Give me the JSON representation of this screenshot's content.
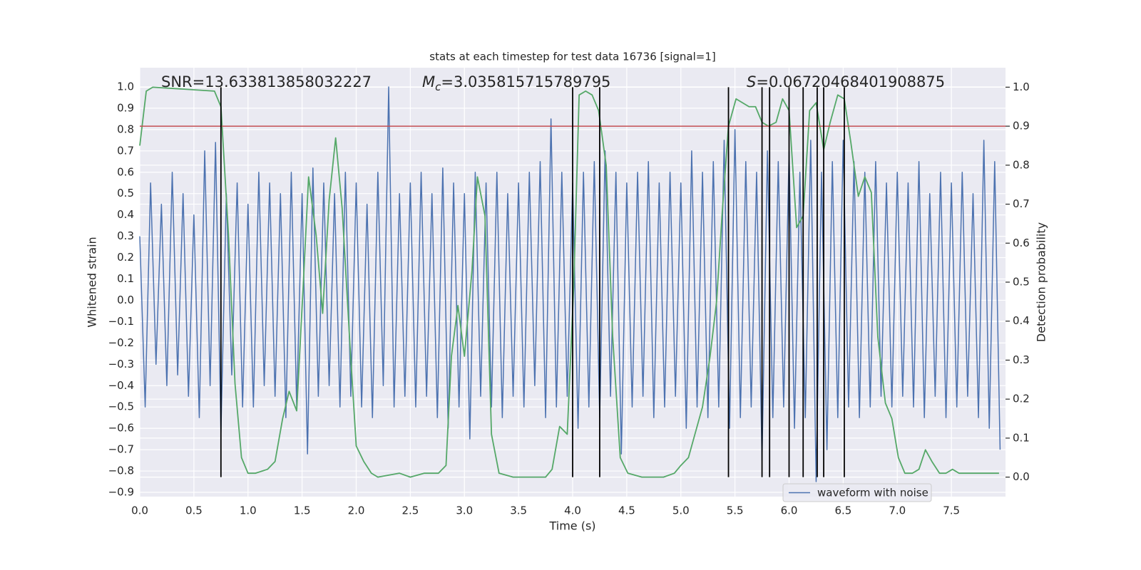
{
  "chart_data": {
    "type": "line",
    "title": "stats at each timestep for test data 16736 [signal=1]",
    "xlabel": "Time (s)",
    "ylabel": "Whitened strain",
    "y2label": "Detection probability",
    "annotations": [
      {
        "text": "SNR=13.633813858032227"
      },
      {
        "italic": "M",
        "sub": "c",
        "text": "=3.035815715789795"
      },
      {
        "italic": "S",
        "text": "=0.06720468401908875"
      }
    ],
    "xlim": [
      0,
      8
    ],
    "ylim": [
      -0.92,
      1.09
    ],
    "y2lim": [
      -0.05,
      1.05
    ],
    "xticks": [
      {
        "value": 0,
        "label": "0.0"
      },
      0.5,
      {
        "value": 1,
        "label": "1.0"
      },
      1.5,
      {
        "value": 2,
        "label": "2.0"
      },
      2.5,
      {
        "value": 3,
        "label": "3.0"
      },
      3.5,
      {
        "value": 4,
        "label": "4.0"
      },
      4.5,
      {
        "value": 5,
        "label": "5.0"
      },
      5.5,
      {
        "value": 6,
        "label": "6.0"
      },
      6.5,
      {
        "value": 7,
        "label": "7.0"
      },
      7.5
    ],
    "yticks": [
      {
        "value": -0.9,
        "label": "−0.9"
      },
      {
        "value": -0.8,
        "label": "−0.8"
      },
      {
        "value": -0.7,
        "label": "−0.7"
      },
      {
        "value": -0.6,
        "label": "−0.6"
      },
      {
        "value": -0.5,
        "label": "−0.5"
      },
      {
        "value": -0.4,
        "label": "−0.4"
      },
      {
        "value": -0.3,
        "label": "−0.3"
      },
      {
        "value": -0.2,
        "label": "−0.2"
      },
      {
        "value": -0.1,
        "label": "−0.1"
      },
      {
        "value": 0,
        "label": "0.0"
      },
      0.1,
      0.2,
      0.3,
      0.4,
      0.5,
      0.6,
      0.7,
      0.8,
      0.9,
      {
        "value": 1,
        "label": "1.0"
      }
    ],
    "y2ticks": [
      {
        "value": 0,
        "label": "0.0"
      },
      0.1,
      0.2,
      0.3,
      0.4,
      0.5,
      0.6,
      0.7,
      0.8,
      0.9,
      {
        "value": 1,
        "label": "1.0"
      }
    ],
    "grid": true,
    "legend": "lower right",
    "series": [
      {
        "name": "waveform with noise",
        "color": "#4c72b0",
        "x": [
          0,
          0.05,
          0.1,
          0.15,
          0.2,
          0.25,
          0.3,
          0.35,
          0.4,
          0.45,
          0.5,
          0.55,
          0.6,
          0.65,
          0.7,
          0.75,
          0.8,
          0.85,
          0.9,
          0.95,
          1,
          1.05,
          1.1,
          1.15,
          1.2,
          1.25,
          1.3,
          1.35,
          1.4,
          1.45,
          1.5,
          1.55,
          1.6,
          1.65,
          1.7,
          1.75,
          1.8,
          1.85,
          1.9,
          1.95,
          2,
          2.05,
          2.1,
          2.15,
          2.2,
          2.25,
          2.3,
          2.35,
          2.4,
          2.45,
          2.5,
          2.55,
          2.6,
          2.65,
          2.7,
          2.75,
          2.8,
          2.85,
          2.9,
          2.95,
          3,
          3.05,
          3.1,
          3.15,
          3.2,
          3.25,
          3.3,
          3.35,
          3.4,
          3.45,
          3.5,
          3.55,
          3.6,
          3.65,
          3.7,
          3.75,
          3.8,
          3.85,
          3.9,
          3.95,
          4,
          4.05,
          4.1,
          4.15,
          4.2,
          4.25,
          4.3,
          4.35,
          4.4,
          4.45,
          4.5,
          4.55,
          4.6,
          4.65,
          4.7,
          4.75,
          4.8,
          4.85,
          4.9,
          4.95,
          5,
          5.05,
          5.1,
          5.15,
          5.2,
          5.25,
          5.3,
          5.35,
          5.4,
          5.45,
          5.5,
          5.55,
          5.6,
          5.65,
          5.7,
          5.75,
          5.8,
          5.85,
          5.9,
          5.95,
          6,
          6.05,
          6.1,
          6.15,
          6.2,
          6.25,
          6.3,
          6.35,
          6.4,
          6.45,
          6.5,
          6.55,
          6.6,
          6.65,
          6.7,
          6.75,
          6.8,
          6.85,
          6.9,
          6.95,
          7,
          7.05,
          7.1,
          7.15,
          7.2,
          7.25,
          7.3,
          7.35,
          7.4,
          7.45,
          7.5,
          7.55,
          7.6,
          7.65,
          7.7,
          7.75,
          7.8,
          7.85,
          7.9,
          7.95
        ],
        "values": [
          0.3,
          -0.5,
          0.55,
          -0.3,
          0.45,
          -0.4,
          0.6,
          -0.35,
          0.5,
          -0.45,
          0.4,
          -0.55,
          0.7,
          -0.4,
          0.74,
          -0.62,
          0.5,
          -0.35,
          0.55,
          -0.5,
          0.45,
          -0.5,
          0.6,
          -0.4,
          0.55,
          -0.45,
          0.5,
          -0.55,
          0.6,
          -0.5,
          0.5,
          -0.72,
          0.62,
          -0.45,
          0.55,
          -0.4,
          0.5,
          -0.5,
          0.6,
          -0.45,
          0.55,
          -0.5,
          0.45,
          -0.55,
          0.6,
          -0.4,
          1.0,
          -0.5,
          0.5,
          -0.45,
          0.55,
          -0.5,
          0.6,
          -0.45,
          0.5,
          -0.55,
          0.62,
          -0.6,
          0.55,
          -0.5,
          0.5,
          -0.65,
          0.6,
          -0.45,
          0.55,
          -0.5,
          0.6,
          -0.55,
          0.5,
          -0.45,
          0.55,
          -0.5,
          0.6,
          -0.4,
          0.65,
          -0.55,
          0.85,
          -0.5,
          0.6,
          -0.45,
          0.55,
          -0.6,
          0.6,
          -0.5,
          0.65,
          -0.55,
          0.7,
          -0.45,
          0.6,
          -0.72,
          0.55,
          -0.5,
          0.6,
          -0.45,
          0.65,
          -0.55,
          0.55,
          -0.5,
          0.6,
          -0.45,
          0.55,
          -0.6,
          0.7,
          -0.5,
          0.6,
          -0.55,
          0.65,
          -0.5,
          0.75,
          -0.6,
          0.8,
          -0.55,
          0.65,
          -0.5,
          0.6,
          -0.75,
          0.7,
          -0.55,
          0.65,
          -0.5,
          0.7,
          -0.6,
          0.6,
          -0.55,
          0.75,
          -0.85,
          0.6,
          -0.7,
          0.65,
          -0.55,
          0.75,
          -0.5,
          0.65,
          -0.55,
          0.6,
          -0.5,
          0.65,
          -0.45,
          0.55,
          -0.5,
          0.6,
          -0.45,
          0.55,
          -0.5,
          0.65,
          -0.55,
          0.5,
          -0.45,
          0.6,
          -0.55,
          0.55,
          -0.5,
          0.6,
          -0.45,
          0.5,
          -0.55,
          0.75,
          -0.6,
          0.65,
          -0.7
        ]
      },
      {
        "color": "#55a868",
        "axis": "y2",
        "x": [
          0,
          0.06,
          0.12,
          0.69,
          0.75,
          0.82,
          0.88,
          0.94,
          1.0,
          1.07,
          1.18,
          1.25,
          1.32,
          1.38,
          1.45,
          1.51,
          1.56,
          1.63,
          1.69,
          1.75,
          1.81,
          1.87,
          1.94,
          2.0,
          2.07,
          2.14,
          2.2,
          2.4,
          2.5,
          2.63,
          2.76,
          2.83,
          2.88,
          2.94,
          3.0,
          3.07,
          3.12,
          3.19,
          3.25,
          3.32,
          3.45,
          3.75,
          3.81,
          3.88,
          3.95,
          4.01,
          4.06,
          4.12,
          4.18,
          4.24,
          4.31,
          4.37,
          4.44,
          4.51,
          4.64,
          4.84,
          4.94,
          5.0,
          5.07,
          5.13,
          5.2,
          5.27,
          5.33,
          5.38,
          5.44,
          5.51,
          5.57,
          5.63,
          5.69,
          5.75,
          5.81,
          5.88,
          5.94,
          6.0,
          6.07,
          6.13,
          6.19,
          6.25,
          6.32,
          6.38,
          6.45,
          6.51,
          6.57,
          6.64,
          6.7,
          6.76,
          6.82,
          6.89,
          6.95,
          7.01,
          7.07,
          7.14,
          7.2,
          7.26,
          7.32,
          7.39,
          7.45,
          7.51,
          7.57,
          7.71,
          7.94
        ],
        "values": [
          0.85,
          0.99,
          1.0,
          0.99,
          0.95,
          0.62,
          0.24,
          0.05,
          0.01,
          0.01,
          0.02,
          0.04,
          0.15,
          0.22,
          0.17,
          0.49,
          0.77,
          0.62,
          0.42,
          0.71,
          0.87,
          0.69,
          0.35,
          0.08,
          0.04,
          0.01,
          0.0,
          0.01,
          0.0,
          0.01,
          0.01,
          0.03,
          0.31,
          0.44,
          0.31,
          0.53,
          0.77,
          0.67,
          0.11,
          0.01,
          0.0,
          0.0,
          0.02,
          0.13,
          0.11,
          0.49,
          0.98,
          0.99,
          0.98,
          0.94,
          0.8,
          0.36,
          0.05,
          0.01,
          0.0,
          0.0,
          0.01,
          0.03,
          0.05,
          0.11,
          0.18,
          0.31,
          0.45,
          0.67,
          0.9,
          0.97,
          0.96,
          0.95,
          0.95,
          0.91,
          0.9,
          0.91,
          0.97,
          0.94,
          0.64,
          0.67,
          0.94,
          0.96,
          0.84,
          0.91,
          0.98,
          0.97,
          0.86,
          0.72,
          0.77,
          0.73,
          0.36,
          0.19,
          0.15,
          0.05,
          0.01,
          0.01,
          0.02,
          0.07,
          0.04,
          0.01,
          0.01,
          0.02,
          0.01,
          0.01,
          0.01
        ]
      }
    ],
    "vlines": {
      "x": [
        0.75,
        4.0,
        4.25,
        5.44,
        5.75,
        5.82,
        6.0,
        6.13,
        6.26,
        6.32,
        6.51
      ],
      "ymin": 0,
      "ymax": 1,
      "axis": "y2",
      "color": "#000000"
    },
    "hline": {
      "y": 0.9,
      "axis": "y2",
      "color": "#c44e52"
    }
  }
}
